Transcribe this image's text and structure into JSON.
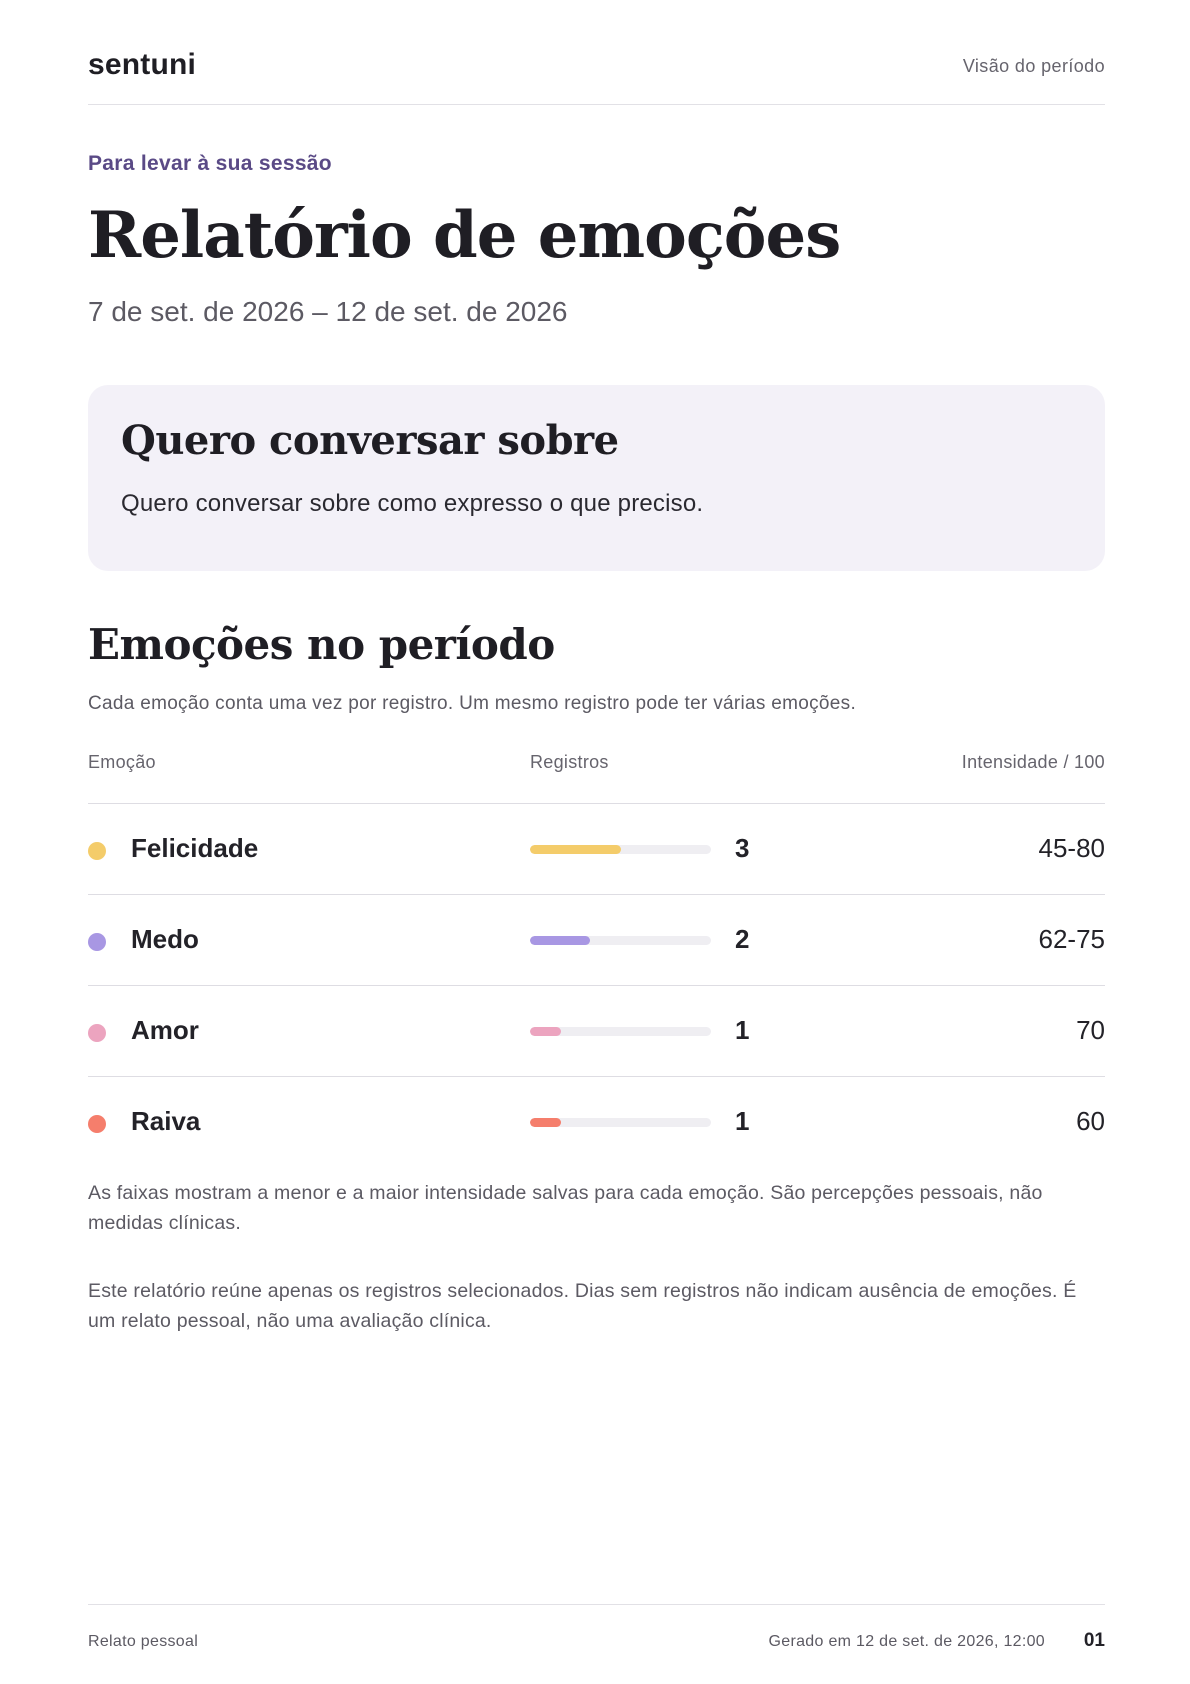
{
  "header": {
    "brand": "sentuni",
    "section_label": "Visão do período"
  },
  "intro": {
    "eyebrow": "Para levar à sua sessão",
    "title": "Relatório de emoções",
    "period": "7 de set. de 2026 – 12 de set. de 2026"
  },
  "talk_card": {
    "title": "Quero conversar sobre",
    "text": "Quero conversar sobre como expresso o que preciso."
  },
  "emotions": {
    "title": "Emoções no período",
    "subtitle": "Cada emoção conta uma vez por registro. Um mesmo registro pode ter várias emoções.",
    "columns": {
      "emotion": "Emoção",
      "records": "Registros",
      "intensity": "Intensidade / 100"
    },
    "rows": [
      {
        "name": "Felicidade",
        "count": "3",
        "range": "45-80",
        "bar_fraction": 0.5,
        "color": "#f4cc6a"
      },
      {
        "name": "Medo",
        "count": "2",
        "range": "62-75",
        "bar_fraction": 0.33,
        "color": "#a897e3"
      },
      {
        "name": "Amor",
        "count": "1",
        "range": "70",
        "bar_fraction": 0.17,
        "color": "#eca4bf"
      },
      {
        "name": "Raiva",
        "count": "1",
        "range": "60",
        "bar_fraction": 0.17,
        "color": "#f57e6c"
      }
    ]
  },
  "notes": {
    "ranges_note": "As faixas mostram a menor e a maior intensidade salvas para cada emoção. São percepções pessoais, não medidas clínicas.",
    "disclaimer": "Este relatório reúne apenas os registros selecionados. Dias sem registros não indicam ausência de emoções. É um relato pessoal, não uma avaliação clínica."
  },
  "footer": {
    "left": "Relato pessoal",
    "generated": "Gerado em 12 de set. de 2026, 12:00",
    "page": "01"
  },
  "colors": {
    "accent": "#5a4a86",
    "card_background": "#f3f1f8"
  }
}
